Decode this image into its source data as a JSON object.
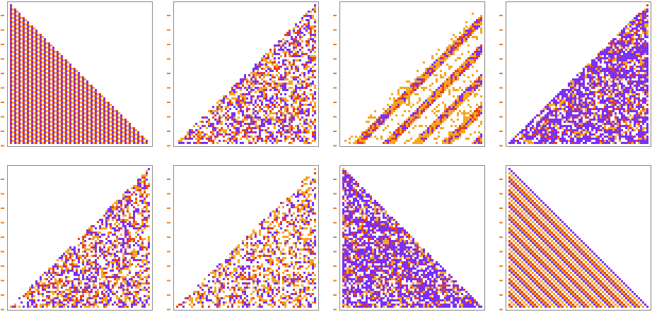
{
  "colors": [
    "#7b2ff7",
    "#f5a623",
    "#e8401c"
  ],
  "tick_color": "#f07f20",
  "frame_color": "#888888",
  "panels": [
    {
      "corner": "bottom-left",
      "style": "stripes"
    },
    {
      "corner": "bottom-right",
      "style": "random"
    },
    {
      "corner": "bottom-right",
      "style": "bands"
    },
    {
      "corner": "bottom-right",
      "style": "purple"
    },
    {
      "corner": "bottom-right",
      "style": "random"
    },
    {
      "corner": "bottom-right",
      "style": "sparse"
    },
    {
      "corner": "bottom-left",
      "style": "purple"
    },
    {
      "corner": "bottom-left",
      "style": "diagonal"
    }
  ]
}
